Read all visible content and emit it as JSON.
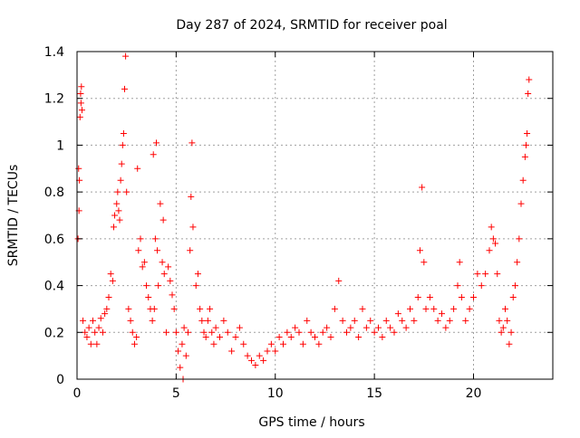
{
  "chart_data": {
    "type": "scatter",
    "title": "Day 287 of 2024, SRMTID for receiver poal",
    "xlabel": "GPS time / hours",
    "ylabel": "SRMTID / TECUs",
    "xlim": [
      0,
      24
    ],
    "ylim": [
      0,
      1.4
    ],
    "xticks": [
      0,
      5,
      10,
      15,
      20
    ],
    "xtick_labels": [
      "0",
      "5",
      "10",
      "15",
      "20"
    ],
    "yticks": [
      0,
      0.2,
      0.4,
      0.6,
      0.8,
      1.0,
      1.2,
      1.4
    ],
    "ytick_labels": [
      "0",
      "0.2",
      "0.4",
      "0.6",
      "0.8",
      "1",
      "1.2",
      "1.4"
    ],
    "grid": true,
    "marker": "+",
    "series": [
      {
        "name": "poal",
        "color": "#ff0000",
        "points": [
          [
            0.05,
            0.6
          ],
          [
            0.08,
            0.9
          ],
          [
            0.1,
            0.72
          ],
          [
            0.12,
            0.85
          ],
          [
            0.15,
            1.12
          ],
          [
            0.18,
            1.22
          ],
          [
            0.2,
            1.18
          ],
          [
            0.22,
            1.25
          ],
          [
            0.25,
            1.15
          ],
          [
            0.3,
            0.25
          ],
          [
            0.4,
            0.2
          ],
          [
            0.5,
            0.18
          ],
          [
            0.6,
            0.22
          ],
          [
            0.7,
            0.15
          ],
          [
            0.8,
            0.25
          ],
          [
            0.9,
            0.2
          ],
          [
            1.0,
            0.15
          ],
          [
            1.1,
            0.22
          ],
          [
            1.2,
            0.26
          ],
          [
            1.3,
            0.2
          ],
          [
            1.4,
            0.28
          ],
          [
            1.5,
            0.3
          ],
          [
            1.6,
            0.35
          ],
          [
            1.7,
            0.45
          ],
          [
            1.8,
            0.42
          ],
          [
            1.85,
            0.65
          ],
          [
            1.9,
            0.7
          ],
          [
            2.0,
            0.75
          ],
          [
            2.05,
            0.8
          ],
          [
            2.1,
            0.72
          ],
          [
            2.15,
            0.68
          ],
          [
            2.2,
            0.85
          ],
          [
            2.25,
            0.92
          ],
          [
            2.3,
            1.0
          ],
          [
            2.35,
            1.05
          ],
          [
            2.4,
            1.24
          ],
          [
            2.45,
            1.38
          ],
          [
            2.5,
            0.8
          ],
          [
            2.6,
            0.3
          ],
          [
            2.7,
            0.25
          ],
          [
            2.8,
            0.2
          ],
          [
            2.9,
            0.15
          ],
          [
            3.0,
            0.18
          ],
          [
            3.05,
            0.9
          ],
          [
            3.1,
            0.55
          ],
          [
            3.2,
            0.6
          ],
          [
            3.3,
            0.48
          ],
          [
            3.4,
            0.5
          ],
          [
            3.5,
            0.4
          ],
          [
            3.6,
            0.35
          ],
          [
            3.7,
            0.3
          ],
          [
            3.8,
            0.25
          ],
          [
            3.9,
            0.3
          ],
          [
            3.85,
            0.96
          ],
          [
            3.95,
            0.6
          ],
          [
            4.0,
            1.01
          ],
          [
            4.05,
            0.55
          ],
          [
            4.1,
            0.4
          ],
          [
            4.2,
            0.75
          ],
          [
            4.3,
            0.5
          ],
          [
            4.35,
            0.68
          ],
          [
            4.4,
            0.45
          ],
          [
            4.5,
            0.2
          ],
          [
            4.6,
            0.48
          ],
          [
            4.7,
            0.42
          ],
          [
            4.8,
            0.36
          ],
          [
            4.9,
            0.3
          ],
          [
            5.0,
            0.2
          ],
          [
            5.1,
            0.12
          ],
          [
            5.2,
            0.05
          ],
          [
            5.3,
            0.15
          ],
          [
            5.35,
            0.0
          ],
          [
            5.4,
            0.22
          ],
          [
            5.5,
            0.1
          ],
          [
            5.6,
            0.2
          ],
          [
            5.7,
            0.55
          ],
          [
            5.75,
            0.78
          ],
          [
            5.8,
            1.01
          ],
          [
            5.85,
            0.65
          ],
          [
            6.0,
            0.4
          ],
          [
            6.1,
            0.45
          ],
          [
            6.2,
            0.3
          ],
          [
            6.3,
            0.25
          ],
          [
            6.4,
            0.2
          ],
          [
            6.5,
            0.18
          ],
          [
            6.6,
            0.25
          ],
          [
            6.7,
            0.3
          ],
          [
            6.8,
            0.2
          ],
          [
            6.9,
            0.15
          ],
          [
            7.0,
            0.22
          ],
          [
            7.2,
            0.18
          ],
          [
            7.4,
            0.25
          ],
          [
            7.6,
            0.2
          ],
          [
            7.8,
            0.12
          ],
          [
            8.0,
            0.18
          ],
          [
            8.2,
            0.22
          ],
          [
            8.4,
            0.15
          ],
          [
            8.6,
            0.1
          ],
          [
            8.8,
            0.08
          ],
          [
            9.0,
            0.06
          ],
          [
            9.2,
            0.1
          ],
          [
            9.4,
            0.08
          ],
          [
            9.6,
            0.12
          ],
          [
            9.8,
            0.15
          ],
          [
            10.0,
            0.12
          ],
          [
            10.2,
            0.18
          ],
          [
            10.4,
            0.15
          ],
          [
            10.6,
            0.2
          ],
          [
            10.8,
            0.18
          ],
          [
            11.0,
            0.22
          ],
          [
            11.2,
            0.2
          ],
          [
            11.4,
            0.15
          ],
          [
            11.6,
            0.25
          ],
          [
            11.8,
            0.2
          ],
          [
            12.0,
            0.18
          ],
          [
            12.2,
            0.15
          ],
          [
            12.4,
            0.2
          ],
          [
            12.6,
            0.22
          ],
          [
            12.8,
            0.18
          ],
          [
            13.0,
            0.3
          ],
          [
            13.2,
            0.42
          ],
          [
            13.4,
            0.25
          ],
          [
            13.6,
            0.2
          ],
          [
            13.8,
            0.22
          ],
          [
            14.0,
            0.25
          ],
          [
            14.2,
            0.18
          ],
          [
            14.4,
            0.3
          ],
          [
            14.6,
            0.22
          ],
          [
            14.8,
            0.25
          ],
          [
            15.0,
            0.2
          ],
          [
            15.2,
            0.22
          ],
          [
            15.4,
            0.18
          ],
          [
            15.6,
            0.25
          ],
          [
            15.8,
            0.22
          ],
          [
            16.0,
            0.2
          ],
          [
            16.2,
            0.28
          ],
          [
            16.4,
            0.25
          ],
          [
            16.6,
            0.22
          ],
          [
            16.8,
            0.3
          ],
          [
            17.0,
            0.25
          ],
          [
            17.2,
            0.35
          ],
          [
            17.3,
            0.55
          ],
          [
            17.4,
            0.82
          ],
          [
            17.5,
            0.5
          ],
          [
            17.6,
            0.3
          ],
          [
            17.8,
            0.35
          ],
          [
            18.0,
            0.3
          ],
          [
            18.2,
            0.25
          ],
          [
            18.4,
            0.28
          ],
          [
            18.6,
            0.22
          ],
          [
            18.8,
            0.25
          ],
          [
            19.0,
            0.3
          ],
          [
            19.2,
            0.4
          ],
          [
            19.3,
            0.5
          ],
          [
            19.4,
            0.35
          ],
          [
            19.6,
            0.25
          ],
          [
            19.8,
            0.3
          ],
          [
            20.0,
            0.35
          ],
          [
            20.2,
            0.45
          ],
          [
            20.4,
            0.4
          ],
          [
            20.6,
            0.45
          ],
          [
            20.8,
            0.55
          ],
          [
            20.9,
            0.65
          ],
          [
            21.0,
            0.6
          ],
          [
            21.1,
            0.58
          ],
          [
            21.2,
            0.45
          ],
          [
            21.3,
            0.25
          ],
          [
            21.4,
            0.2
          ],
          [
            21.5,
            0.22
          ],
          [
            21.6,
            0.3
          ],
          [
            21.7,
            0.25
          ],
          [
            21.8,
            0.15
          ],
          [
            21.9,
            0.2
          ],
          [
            22.0,
            0.35
          ],
          [
            22.1,
            0.4
          ],
          [
            22.2,
            0.5
          ],
          [
            22.3,
            0.6
          ],
          [
            22.4,
            0.75
          ],
          [
            22.5,
            0.85
          ],
          [
            22.6,
            0.95
          ],
          [
            22.65,
            1.0
          ],
          [
            22.7,
            1.05
          ],
          [
            22.75,
            1.22
          ],
          [
            22.8,
            1.28
          ]
        ]
      }
    ]
  }
}
